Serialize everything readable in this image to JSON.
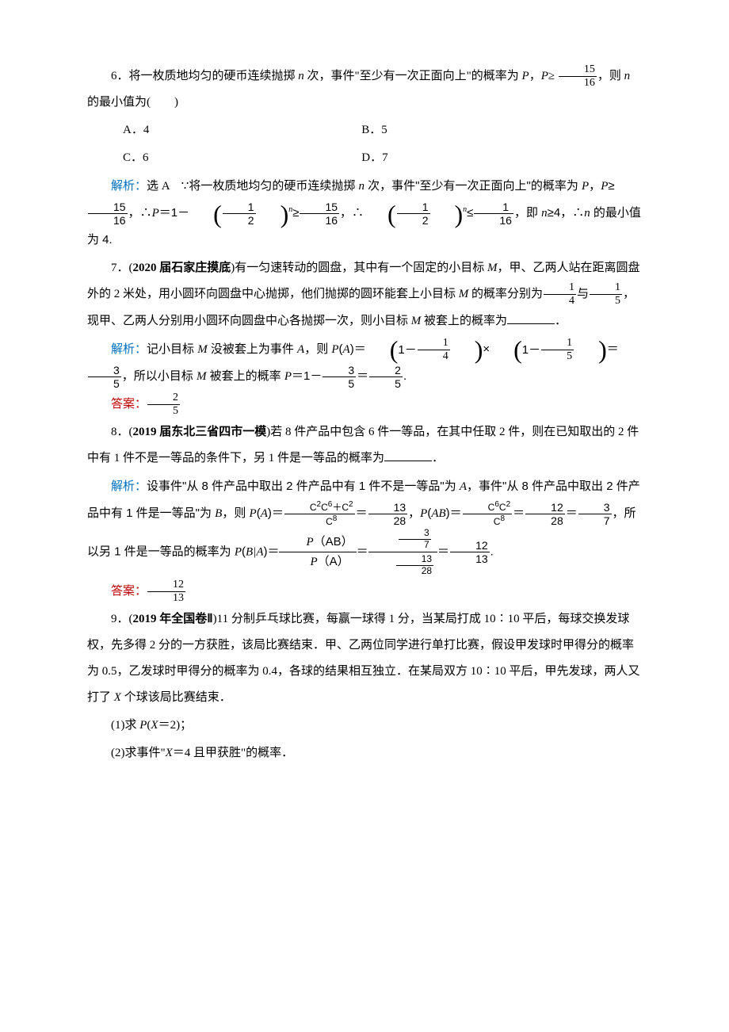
{
  "q6": {
    "text_part1": "6．将一枚质地均匀的硬币连续抛掷 ",
    "text_n": "n",
    "text_part2": " 次，事件\"至少有一次正面向上\"的概率为 ",
    "text_P": "P",
    "text_part3": "，",
    "text_Pge": "P",
    "text_part4": "≥",
    "frac_num": "15",
    "frac_den": "16",
    "text_part5": "，则 ",
    "text_n2": "n",
    "text_part6": " 的最小值为(　　)",
    "optA": "A．4",
    "optB": "B．5",
    "optC": "C．6",
    "optD": "D．7",
    "sol_label": "解析：",
    "sol_ans": "选 A　",
    "sol_body1": "∵将一枚质地均匀的硬币连续抛掷 ",
    "sol_body2": " 次，事件\"至少有一次正面向上\"的概率为 ",
    "sol_body3": "，",
    "sol_body4": "≥",
    "sol_frac1_num": "15",
    "sol_frac1_den": "16",
    "sol_body5": "，∴",
    "sol_body6": "＝1－",
    "sol_half_num": "1",
    "sol_half_den": "2",
    "sol_body7": "≥",
    "sol_body8": "，∴",
    "sol_body9": "≤",
    "sol_frac2_num": "1",
    "sol_frac2_den": "16",
    "sol_body10": "，即 ",
    "sol_body11": "≥4，∴",
    "sol_body12": " 的最小值为 4."
  },
  "q7": {
    "text_part1": "7．(",
    "source": "2020 届石家庄摸底",
    "text_part2": ")有一匀速转动的圆盘，其中有一个固定的小目标 ",
    "M": "M",
    "text_part3": "，甲、乙两人站在距离圆盘外的 2 米处，用小圆环向圆盘中心抛掷，他们抛掷的圆环能套上小目标 ",
    "text_part4": " 的概率分别为",
    "frac1_num": "1",
    "frac1_den": "4",
    "text_part5": "与",
    "frac2_num": "1",
    "frac2_den": "5",
    "text_part6": "，现甲、乙两人分别用小圆环向圆盘中心各抛掷一次，则小目标 ",
    "text_part7": " 被套上的概率为",
    "text_part8": "．",
    "sol_label": "解析：",
    "sol_body1": "记小目标 ",
    "sol_body2": " 没被套上为事件 ",
    "A": "A",
    "sol_body3": "，则 ",
    "sol_PA": "P",
    "sol_body4": "(",
    "sol_body5": ")＝",
    "sol_f1_num": "1",
    "sol_f1_den": "4",
    "sol_mult": "×",
    "sol_f2_num": "1",
    "sol_f2_den": "5",
    "sol_eq": "＝",
    "sol_f3_num": "3",
    "sol_f3_den": "5",
    "sol_body6": "，所以小目标 ",
    "sol_body7": " 被套上的概率 ",
    "sol_body8": "＝1－",
    "sol_f4_num": "3",
    "sol_f4_den": "5",
    "sol_f5_num": "2",
    "sol_f5_den": "5",
    "sol_body9": ".",
    "ans_label": "答案：",
    "ans_num": "2",
    "ans_den": "5"
  },
  "q8": {
    "text_part1": "8．(",
    "source": "2019 届东北三省四市一模",
    "text_part2": ")若 8 件产品中包含 6 件一等品，在其中任取 2 件，则在已知取出的 2 件中有 1 件不是一等品的条件下，另 1 件是一等品的概率为",
    "text_part3": "．",
    "sol_label": "解析：",
    "sol_body1": "设事件\"从 8 件产品中取出 2 件产品中有 1 件不是一等品\"为 ",
    "A": "A",
    "sol_body2": "，事件\"从 8 件产品中取出 2 件产品中有 1 件是一等品\"为 ",
    "B": "B",
    "sol_body3": "，则 ",
    "P": "P",
    "sol_body4": "(",
    "sol_body5": ")＝",
    "sol_PA_num": "C²₁C⁶₁＋C²₂",
    "sol_PA_den": "C⁸₂",
    "sol_body5b": "＝",
    "sol_f1_num": "13",
    "sol_f1_den": "28",
    "sol_body6": "，",
    "sol_body7": "(",
    "AB": "AB",
    "sol_body8": ")＝",
    "sol_PAB_num": "C⁶₁C²₁",
    "sol_PAB_den": "C⁸₂",
    "sol_body8b": "＝",
    "sol_f2_num": "12",
    "sol_f2_den": "28",
    "sol_body9": "＝",
    "sol_f3_num": "3",
    "sol_f3_den": "7",
    "sol_body10": "，所以另 1 件是一等品的概率为 ",
    "sol_body11": "(",
    "BA": "B|A",
    "sol_body12": ")＝",
    "sol_cf_num_P": "P",
    "sol_cf_num_AB": "（AB）",
    "sol_cf_den_P": "P",
    "sol_cf_den_A": "（A）",
    "sol_body13": "＝",
    "sol_cf2_num_num": "3",
    "sol_cf2_num_den": "7",
    "sol_cf2_den_num": "13",
    "sol_cf2_den_den": "28",
    "sol_body14": "＝",
    "sol_f4_num": "12",
    "sol_f4_den": "13",
    "sol_body15": ".",
    "ans_label": "答案：",
    "ans_num": "12",
    "ans_den": "13"
  },
  "q9": {
    "text_part1": "9．(",
    "source": "2019 年全国卷Ⅱ",
    "text_part2": ")11 分制乒乓球比赛，每赢一球得 1 分，当某局打成 10∶10 平后，每球交换发球权，先多得 2 分的一方获胜，该局比赛结束．甲、乙两位同学进行单打比赛，假设甲发球时甲得分的概率为 0.5，乙发球时甲得分的概率为 0.4，各球的结果相互独立．在某局双方 10∶10 平后，甲先发球，两人又打了 ",
    "X": "X",
    "text_part3": " 个球该局比赛结束．",
    "sub1_label": "(1)求 ",
    "sub1_P": "P",
    "sub1_body": "(",
    "sub1_X": "X",
    "sub1_body2": "＝2)；",
    "sub2_label": "(2)求事件\"",
    "sub2_X": "X",
    "sub2_body": "＝4 且甲获胜\"的概率．"
  }
}
